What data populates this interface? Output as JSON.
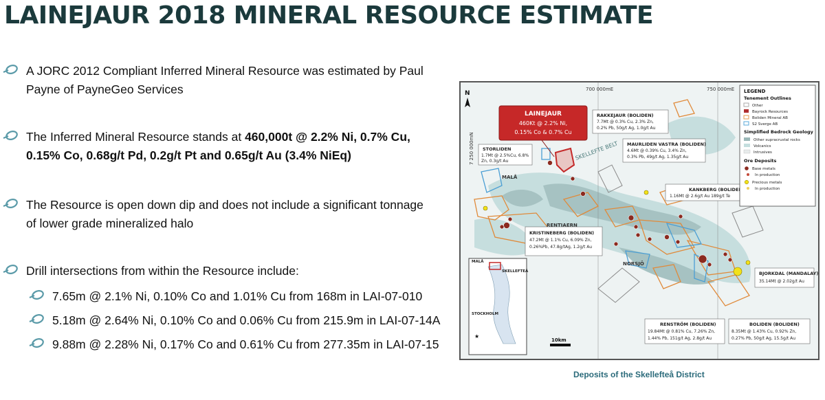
{
  "title": "LAINEJAUR 2018 MINERAL RESOURCE ESTIMATE",
  "bullets": [
    {
      "text": "A JORC 2012 Compliant Inferred Mineral Resource was estimated by Paul Payne of PayneGeo Services"
    },
    {
      "pre": "The Inferred Mineral Resource stands at ",
      "bold": "460,000t @ 2.2% Ni, 0.7% Cu, 0.15% Co, 0.68g/t Pd, 0.2g/t Pt and 0.65g/t Au (3.4% NiEq)"
    },
    {
      "text": "The Resource is open down dip and does not include a significant tonnage of lower grade mineralized halo"
    },
    {
      "text": "Drill intersections from within the Resource include:"
    }
  ],
  "intersections": [
    "7.65m @ 2.1% Ni, 0.10% Co and 1.01% Cu from 168m in LAI-07-010",
    "5.18m @ 2.64% Ni, 0.10% Co and 0.06% Cu from 215.9m in LAI-07-14A",
    "9.88m @ 2.28% Ni, 0.17% Co and 0.61% Cu from 277.35m in LAI-07-15"
  ],
  "map": {
    "caption": "Deposits of the Skellefteå District",
    "grid_labels": [
      "700 000mE",
      "750 000mE",
      "7 250 000mN"
    ],
    "north": "N",
    "scale": "10km",
    "belt_label": "SKELLEFTE BELT",
    "places": [
      "MALÅ",
      "RENTJAERN",
      "NORSJÖ"
    ],
    "highlight": {
      "name": "LAINEJAUR",
      "line1": "460Kt @ 2.2% Ni,",
      "line2": "0.15% Co & 0.7% Cu"
    },
    "callouts": [
      {
        "name": "STORLIDEN",
        "line1": "1.7Mt @ 2.5%Cu, 6.8%",
        "line2": "Zn, 0.3g/t Au"
      },
      {
        "name": "RAKKEJAUR (BOLIDEN)",
        "line1": "7.7Mt @ 0.3% Cu, 2.3% Zn,",
        "line2": "0.2% Pb, 50g/t Ag, 1.0g/t Au"
      },
      {
        "name": "MAURLIDEN VASTRA (BOLIDEN)",
        "line1": "4.6Mt @ 0.39% Cu, 3.4% Zn,",
        "line2": "0.3% Pb, 49g/t Ag, 1.35g/t Au"
      },
      {
        "name": "KANKBERG (BOLIDEN)",
        "line1": "1.16Mt @ 2.6g/t Au 189g/t Te"
      },
      {
        "name": "KRISTINEBERG (BOLIDEN)",
        "line1": "47.2Mt @ 1.1% Cu, 6.09% Zn,",
        "line2": "0.26%Pb, 47.8g/tAg, 1.2g/t Au"
      },
      {
        "name": "BJORKDAL (MANDALAY)",
        "line1": "35.14Mt @ 2.02g/t Au"
      },
      {
        "name": "RENSTRÖM (BOLIDEN)",
        "line1": "19.84Mt @ 0.81% Cu, 7.26% Zn,",
        "line2": "1.44% Pb, 151g/t Ag, 2.8g/t Au"
      },
      {
        "name": "BOLIDEN (BOLIDEN)",
        "line1": "8.35Mt @ 1.43% Cu, 0.92% Zn,",
        "line2": "0.27% Pb, 50g/t Ag, 15.5g/t Au"
      }
    ],
    "inset_labels": [
      "MALÅ",
      "SKELLEFTEÅ",
      "STOCKHOLM"
    ],
    "legend": {
      "title": "LEGEND",
      "tenement_head": "Tenement Outlines",
      "tenements": [
        {
          "label": "Other",
          "color": "#aaaaaa"
        },
        {
          "label": "Bayrock Resources",
          "color": "#b03030"
        },
        {
          "label": "Boliden Mineral AB",
          "color": "#e59a4a"
        },
        {
          "label": "S2 Sverge AB",
          "color": "#5aa8d8"
        }
      ],
      "geology_head": "Simplified Bedrock Geology",
      "geology": [
        {
          "label": "Other supracrustal rocks",
          "color": "#9bb8b8"
        },
        {
          "label": "Volcanics",
          "color": "#c4dede"
        },
        {
          "label": "Intrusives",
          "color": "#e8ecec"
        }
      ],
      "ore_head": "Ore Deposits",
      "ore": [
        {
          "label": "Base metals",
          "color": "#8b2a1f"
        },
        {
          "label": "In production",
          "color": "#c44a3a"
        },
        {
          "label": "Precious metals",
          "color": "#f2e21a"
        },
        {
          "label": "In production",
          "color": "#f0d060"
        }
      ]
    }
  }
}
